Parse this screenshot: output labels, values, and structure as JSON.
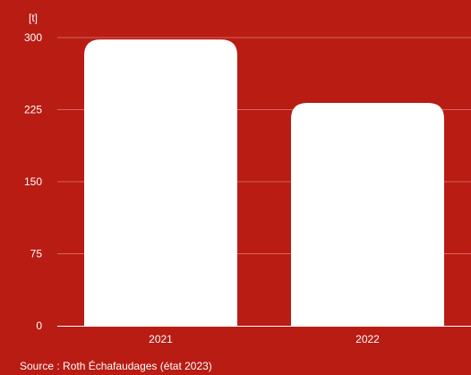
{
  "chart_data": {
    "type": "bar",
    "unit_label": "[t]",
    "categories": [
      "2021",
      "2022"
    ],
    "values": [
      298,
      232
    ],
    "ylim": [
      0,
      300
    ],
    "yticks": [
      0,
      75,
      150,
      225,
      300
    ],
    "grid": true,
    "legend": "none"
  },
  "source": "Source : Roth Échafaudages (état 2023)",
  "colors": {
    "background": "#b81c13",
    "bar": "#ffffff",
    "gridline": "#d8655e",
    "baseline": "#ffffff",
    "text": "#ffffff"
  }
}
